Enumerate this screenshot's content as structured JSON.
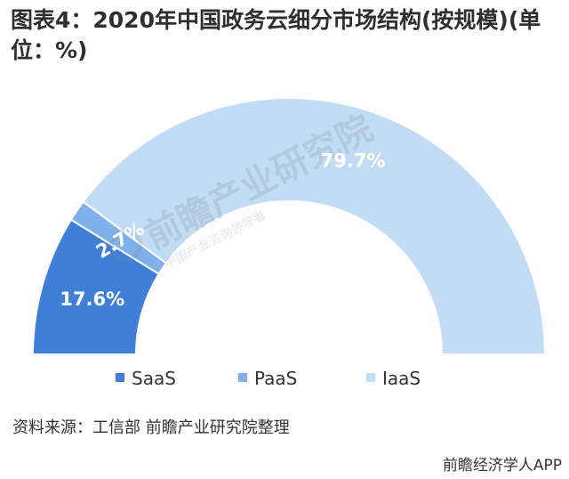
{
  "chart_data": {
    "type": "pie",
    "variant": "semi-donut",
    "title": "图表4：2020年中国政务云细分市场结构(按规模)(单位：%)",
    "categories": [
      "SaaS",
      "PaaS",
      "IaaS"
    ],
    "values": [
      17.6,
      2.7,
      79.7
    ],
    "value_labels": [
      "17.6%",
      "2.7%",
      "79.7%"
    ],
    "legend": {
      "position": "bottom",
      "entries": [
        "SaaS",
        "PaaS",
        "IaaS"
      ]
    }
  },
  "colors": {
    "SaaS": "#3f7fd8",
    "PaaS": "#7fb0eb",
    "IaaS": "#c3dcf5",
    "label": "#ffffff"
  },
  "source_note": "资料来源：工信部 前瞻产业研究院整理",
  "watermark": {
    "name": "前瞻产业研究院",
    "subtitle": "中国产业咨询领导者"
  },
  "footer": {
    "handle": "前瞻经济学人APP"
  }
}
